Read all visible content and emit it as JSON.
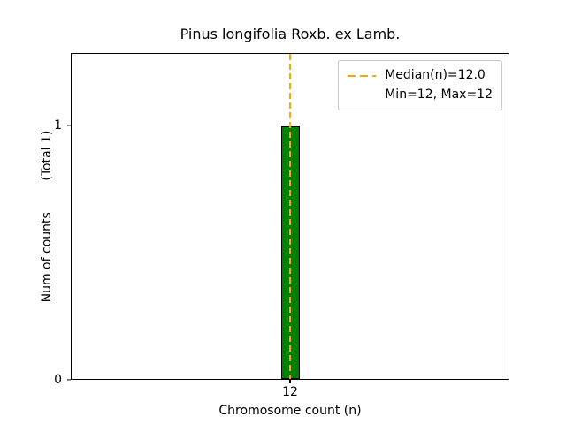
{
  "chart_data": {
    "type": "bar",
    "title": "Pinus longifolia Roxb. ex Lamb.",
    "xlabel": "Chromosome count (n)",
    "ylabel": "Num of counts        (Total 1)",
    "categories": [
      "12"
    ],
    "values": [
      1
    ],
    "ylim": [
      0,
      1.285
    ],
    "grid": false,
    "xticks": [
      {
        "label": "12"
      }
    ],
    "yticks": [
      {
        "label": "0",
        "value": 0
      },
      {
        "label": "1",
        "value": 1
      }
    ],
    "bar_color": "#008000",
    "bar_edge_color": "#000000",
    "median_line": {
      "value": 12,
      "color": "#ffa500",
      "style": "dashed"
    },
    "legend": {
      "position": "upper right",
      "entries": [
        {
          "label": "Median(n)=12.0",
          "swatch": "orange-dashed-line"
        },
        {
          "label": "Min=12, Max=12",
          "swatch": null
        }
      ]
    },
    "stats": {
      "median": 12.0,
      "min": 12,
      "max": 12,
      "total_counts": 1
    }
  }
}
